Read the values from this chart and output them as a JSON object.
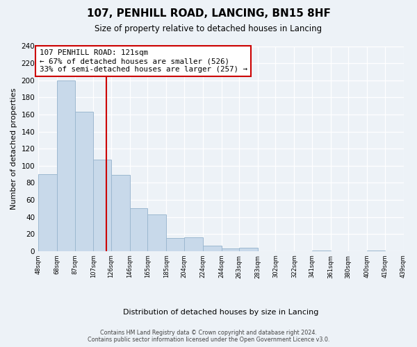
{
  "title": "107, PENHILL ROAD, LANCING, BN15 8HF",
  "subtitle": "Size of property relative to detached houses in Lancing",
  "xlabel": "Distribution of detached houses by size in Lancing",
  "ylabel": "Number of detached properties",
  "bar_edges": [
    48,
    68,
    87,
    107,
    126,
    146,
    165,
    185,
    204,
    224,
    244,
    263,
    283,
    302,
    322,
    341,
    361,
    380,
    400,
    419,
    439
  ],
  "bar_heights": [
    90,
    200,
    163,
    107,
    89,
    50,
    43,
    15,
    16,
    6,
    3,
    4,
    0,
    0,
    0,
    1,
    0,
    0,
    1,
    0
  ],
  "bar_color": "#c8d9ea",
  "bar_edgecolor": "#9cb8d0",
  "vline_x": 121,
  "vline_color": "#cc0000",
  "annotation_title": "107 PENHILL ROAD: 121sqm",
  "annotation_line1": "← 67% of detached houses are smaller (526)",
  "annotation_line2": "33% of semi-detached houses are larger (257) →",
  "annotation_box_facecolor": "#ffffff",
  "annotation_box_edgecolor": "#cc0000",
  "tick_labels": [
    "48sqm",
    "68sqm",
    "87sqm",
    "107sqm",
    "126sqm",
    "146sqm",
    "165sqm",
    "185sqm",
    "204sqm",
    "224sqm",
    "244sqm",
    "263sqm",
    "283sqm",
    "302sqm",
    "322sqm",
    "341sqm",
    "361sqm",
    "380sqm",
    "400sqm",
    "419sqm",
    "439sqm"
  ],
  "ylim": [
    0,
    240
  ],
  "yticks": [
    0,
    20,
    40,
    60,
    80,
    100,
    120,
    140,
    160,
    180,
    200,
    220,
    240
  ],
  "background_color": "#edf2f7",
  "footer_line1": "Contains HM Land Registry data © Crown copyright and database right 2024.",
  "footer_line2": "Contains public sector information licensed under the Open Government Licence v3.0."
}
